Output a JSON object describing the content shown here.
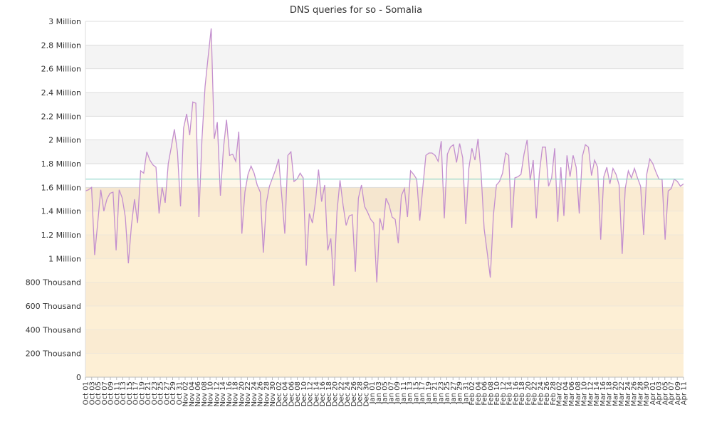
{
  "chart_data": {
    "type": "area",
    "title": "DNS queries for so - Somalia",
    "xlabel": "",
    "ylabel": "",
    "ylim": [
      0,
      3000000
    ],
    "y_ticks": [
      {
        "value": 0,
        "label": "0"
      },
      {
        "value": 200000,
        "label": "200 Thousand"
      },
      {
        "value": 400000,
        "label": "400 Thousand"
      },
      {
        "value": 600000,
        "label": "600 Thousand"
      },
      {
        "value": 800000,
        "label": "800 Thousand"
      },
      {
        "value": 1000000,
        "label": "1 Million"
      },
      {
        "value": 1200000,
        "label": "1.2 Million"
      },
      {
        "value": 1400000,
        "label": "1.4 Million"
      },
      {
        "value": 1600000,
        "label": "1.6 Million"
      },
      {
        "value": 1800000,
        "label": "1.8 Million"
      },
      {
        "value": 2000000,
        "label": "2 Million"
      },
      {
        "value": 2200000,
        "label": "2.2 Million"
      },
      {
        "value": 2400000,
        "label": "2.4 Million"
      },
      {
        "value": 2600000,
        "label": "2.6 Million"
      },
      {
        "value": 2800000,
        "label": "2.8 Million"
      },
      {
        "value": 3000000,
        "label": "3 Million"
      }
    ],
    "x_tick_labels": [
      "Oct 01",
      "Oct 03",
      "Oct 05",
      "Oct 07",
      "Oct 09",
      "Oct 11",
      "Oct 13",
      "Oct 15",
      "Oct 17",
      "Oct 19",
      "Oct 21",
      "Oct 23",
      "Oct 25",
      "Oct 27",
      "Oct 29",
      "Oct 31",
      "Nov 02",
      "Nov 04",
      "Nov 06",
      "Nov 08",
      "Nov 10",
      "Nov 12",
      "Nov 14",
      "Nov 16",
      "Nov 18",
      "Nov 20",
      "Nov 22",
      "Nov 24",
      "Nov 26",
      "Nov 28",
      "Nov 30",
      "Dec 02",
      "Dec 04",
      "Dec 06",
      "Dec 08",
      "Dec 10",
      "Dec 12",
      "Dec 14",
      "Dec 16",
      "Dec 18",
      "Dec 20",
      "Dec 22",
      "Dec 24",
      "Dec 26",
      "Dec 28",
      "Dec 30",
      "Jan 01",
      "Jan 03",
      "Jan 05",
      "Jan 07",
      "Jan 09",
      "Jan 11",
      "Jan 13",
      "Jan 15",
      "Jan 17",
      "Jan 19",
      "Jan 21",
      "Jan 23",
      "Jan 25",
      "Jan 27",
      "Jan 29",
      "Jan 31",
      "Feb 02",
      "Feb 04",
      "Feb 06",
      "Feb 08",
      "Feb 10",
      "Feb 12",
      "Feb 14",
      "Feb 16",
      "Feb 18",
      "Feb 20",
      "Feb 22",
      "Feb 24",
      "Feb 26",
      "Feb 28",
      "Mar 02",
      "Mar 04",
      "Mar 06",
      "Mar 08",
      "Mar 10",
      "Mar 12",
      "Mar 14",
      "Mar 16",
      "Mar 18",
      "Mar 20",
      "Mar 22",
      "Mar 24",
      "Mar 26",
      "Mar 28",
      "Mar 30",
      "Apr 01",
      "Apr 03",
      "Apr 05",
      "Apr 07",
      "Apr 09",
      "Apr 11"
    ],
    "series": [
      {
        "values": [
          1570000,
          1580000,
          1600000,
          1030000,
          1300000,
          1580000,
          1400000,
          1500000,
          1550000,
          1560000,
          1070000,
          1580000,
          1510000,
          1350000,
          960000,
          1280000,
          1500000,
          1300000,
          1740000,
          1720000,
          1900000,
          1830000,
          1790000,
          1770000,
          1380000,
          1600000,
          1470000,
          1800000,
          1940000,
          2090000,
          1900000,
          1440000,
          2100000,
          2220000,
          2040000,
          2320000,
          2310000,
          1350000,
          2010000,
          2450000,
          2700000,
          2940000,
          2010000,
          2150000,
          1530000,
          1930000,
          2170000,
          1870000,
          1880000,
          1820000,
          2070000,
          1210000,
          1560000,
          1710000,
          1780000,
          1720000,
          1620000,
          1560000,
          1050000,
          1470000,
          1610000,
          1680000,
          1750000,
          1840000,
          1530000,
          1210000,
          1870000,
          1900000,
          1650000,
          1670000,
          1720000,
          1680000,
          940000,
          1380000,
          1300000,
          1480000,
          1750000,
          1480000,
          1620000,
          1070000,
          1170000,
          770000,
          1390000,
          1660000,
          1450000,
          1280000,
          1360000,
          1370000,
          890000,
          1510000,
          1620000,
          1440000,
          1390000,
          1330000,
          1300000,
          800000,
          1340000,
          1240000,
          1510000,
          1450000,
          1350000,
          1330000,
          1130000,
          1530000,
          1590000,
          1350000,
          1740000,
          1710000,
          1670000,
          1320000,
          1600000,
          1870000,
          1890000,
          1890000,
          1870000,
          1820000,
          1990000,
          1340000,
          1880000,
          1940000,
          1960000,
          1810000,
          1970000,
          1850000,
          1290000,
          1760000,
          1930000,
          1830000,
          2010000,
          1720000,
          1250000,
          1050000,
          840000,
          1360000,
          1620000,
          1650000,
          1720000,
          1890000,
          1870000,
          1260000,
          1680000,
          1690000,
          1710000,
          1880000,
          2000000,
          1660000,
          1830000,
          1340000,
          1720000,
          1940000,
          1940000,
          1610000,
          1680000,
          1930000,
          1310000,
          1770000,
          1360000,
          1870000,
          1690000,
          1870000,
          1770000,
          1380000,
          1860000,
          1960000,
          1940000,
          1700000,
          1830000,
          1770000,
          1160000,
          1690000,
          1770000,
          1630000,
          1760000,
          1710000,
          1620000,
          1040000,
          1590000,
          1740000,
          1680000,
          1760000,
          1680000,
          1610000,
          1200000,
          1710000,
          1840000,
          1800000,
          1730000,
          1670000,
          1670000,
          1160000,
          1570000,
          1590000,
          1670000,
          1650000,
          1610000,
          1630000
        ]
      }
    ],
    "average_value": 1670000,
    "colors": {
      "line": "#c38fcf",
      "area": "#fdefd6",
      "band": "#f5e6cf",
      "average": "#8cd4c8",
      "grid": "#dddddd",
      "band_upper": "#f4f4f4"
    }
  }
}
